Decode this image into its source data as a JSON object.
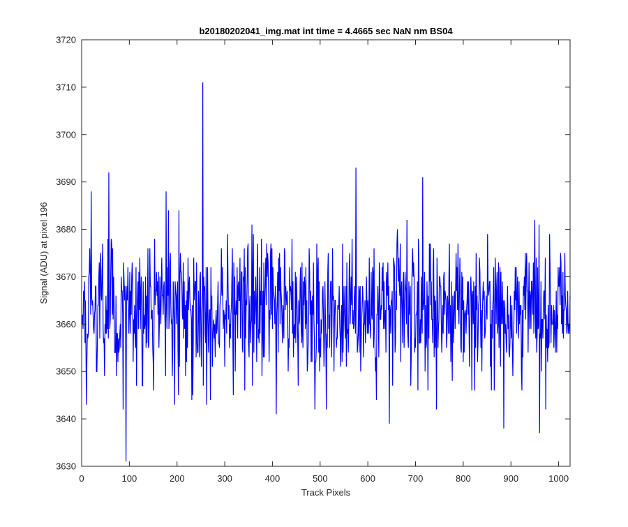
{
  "chart_data": {
    "type": "line",
    "title": "b20180202041_img.mat int time = 4.4665 sec  NaN nm BS04",
    "xlabel": "Track Pixels",
    "ylabel": "Signal (ADU) at pixel 196",
    "xlim": [
      0,
      1024
    ],
    "ylim": [
      3630,
      3720
    ],
    "xticks": [
      0,
      100,
      200,
      300,
      400,
      500,
      600,
      700,
      800,
      900,
      1000
    ],
    "yticks": [
      3630,
      3640,
      3650,
      3660,
      3670,
      3680,
      3690,
      3700,
      3710,
      3720
    ],
    "grid": false,
    "legend": "none",
    "series_color": "#0000ff",
    "n_points": 1024,
    "baseline_mean": 3663,
    "noise_range": [
      3646,
      3680
    ],
    "notable_points": [
      {
        "x": 1,
        "y": 3660
      },
      {
        "x": 10,
        "y": 3643
      },
      {
        "x": 20,
        "y": 3688
      },
      {
        "x": 57,
        "y": 3692
      },
      {
        "x": 93,
        "y": 3631
      },
      {
        "x": 177,
        "y": 3688
      },
      {
        "x": 254,
        "y": 3711
      },
      {
        "x": 262,
        "y": 3643
      },
      {
        "x": 408,
        "y": 3641
      },
      {
        "x": 575,
        "y": 3693
      },
      {
        "x": 645,
        "y": 3639
      },
      {
        "x": 715,
        "y": 3691
      },
      {
        "x": 885,
        "y": 3638
      },
      {
        "x": 960,
        "y": 3637
      },
      {
        "x": 1022,
        "y": 3660
      }
    ]
  }
}
